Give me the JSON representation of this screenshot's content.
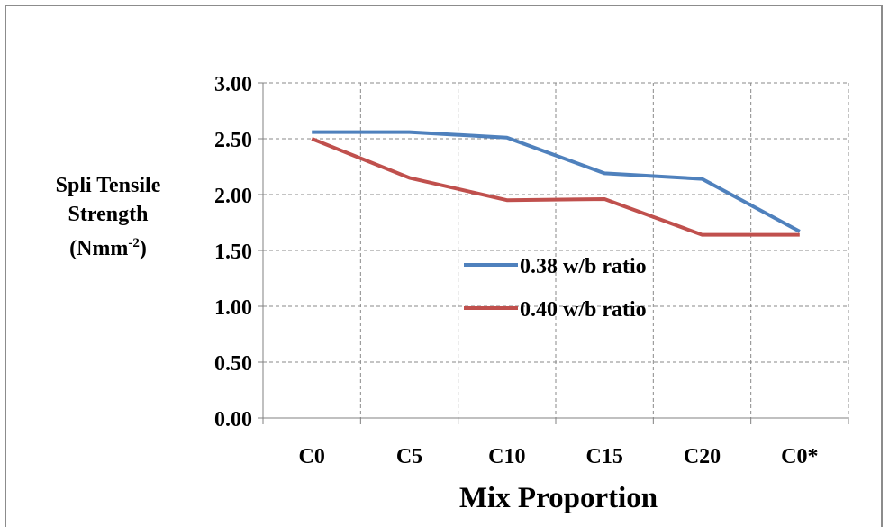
{
  "chart_data": {
    "type": "line",
    "categories": [
      "C0",
      "C5",
      "C10",
      "C15",
      "C20",
      "C0*"
    ],
    "series": [
      {
        "name": "0.38 w/b ratio",
        "values": [
          2.56,
          2.56,
          2.51,
          2.19,
          2.14,
          1.67
        ],
        "color": "#4f81bd"
      },
      {
        "name": "0.40 w/b ratio",
        "values": [
          2.5,
          2.15,
          1.95,
          1.96,
          1.64,
          1.64
        ],
        "color": "#c0504d"
      }
    ],
    "yticks": [
      "0.00",
      "0.50",
      "1.00",
      "1.50",
      "2.00",
      "2.50",
      "3.00"
    ],
    "ylim": [
      0,
      3
    ],
    "xlabel": "Mix Proportion",
    "ylabel": {
      "line1": "Spli Tensile",
      "line2": "Strength",
      "line3_main": "(Nmm",
      "line3_sup": "-2",
      "line3_end": ")"
    },
    "grid": true,
    "legend_position": "center-right"
  }
}
